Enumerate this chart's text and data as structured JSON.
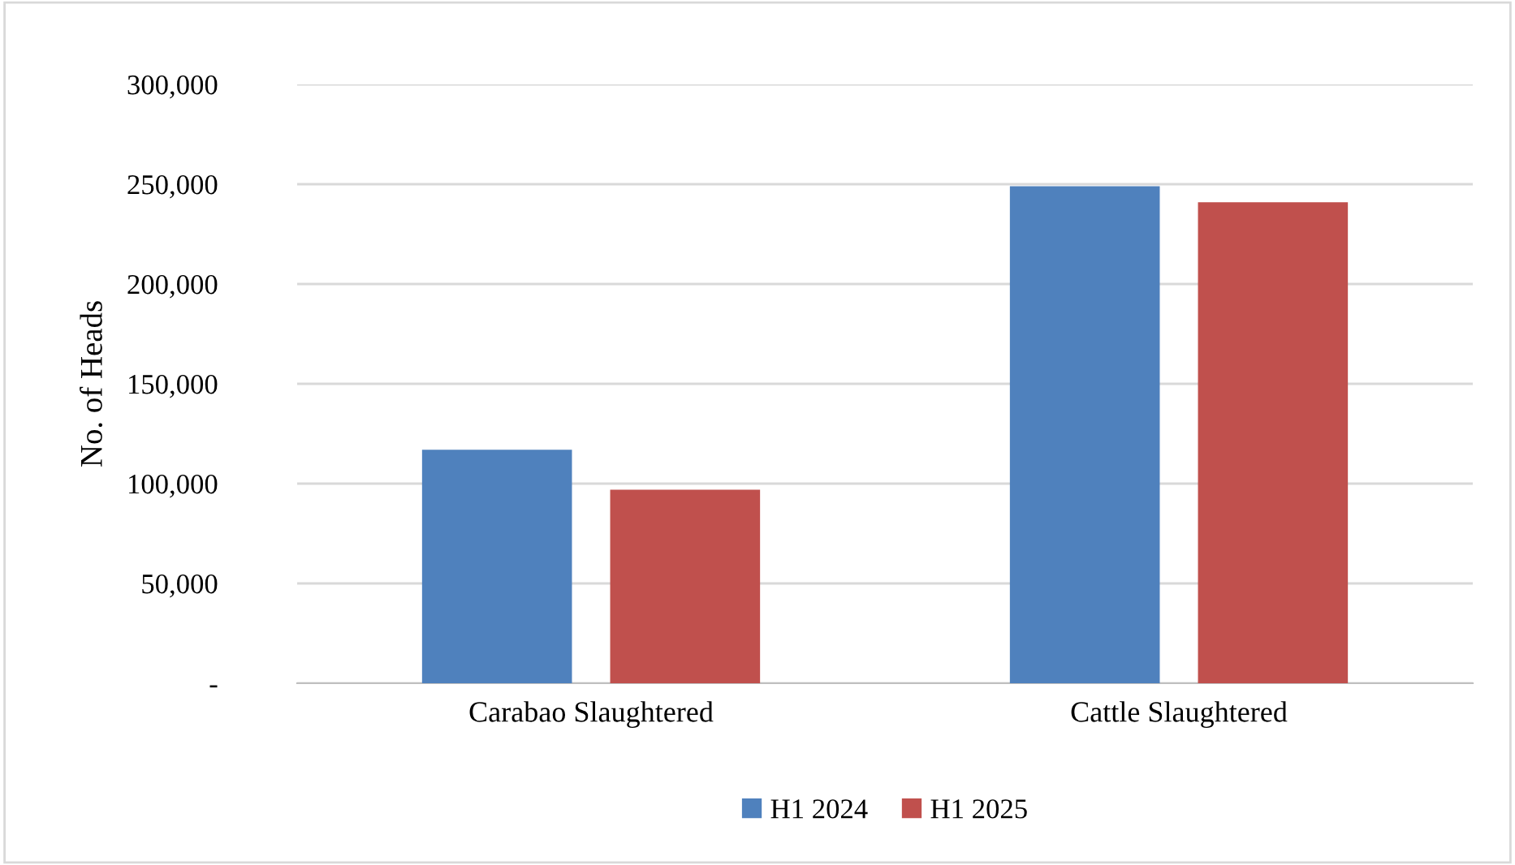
{
  "chart_data": {
    "type": "bar",
    "ylabel": "No. of Heads",
    "categories": [
      "Carabao Slaughtered",
      "Cattle Slaughtered"
    ],
    "series": [
      {
        "name": "H1 2024",
        "color": "#4f81bd",
        "values": [
          117000,
          249000
        ]
      },
      {
        "name": "H1 2025",
        "color": "#c0504d",
        "values": [
          97000,
          241000
        ]
      }
    ],
    "ylim": [
      0,
      300000
    ],
    "yticks": [
      {
        "value": 0,
        "label": "-"
      },
      {
        "value": 50000,
        "label": "50,000"
      },
      {
        "value": 100000,
        "label": "100,000"
      },
      {
        "value": 150000,
        "label": "150,000"
      },
      {
        "value": 200000,
        "label": "200,000"
      },
      {
        "value": 250000,
        "label": "250,000"
      },
      {
        "value": 300000,
        "label": "300,000"
      }
    ],
    "grid": "y",
    "legend": "bottom"
  }
}
